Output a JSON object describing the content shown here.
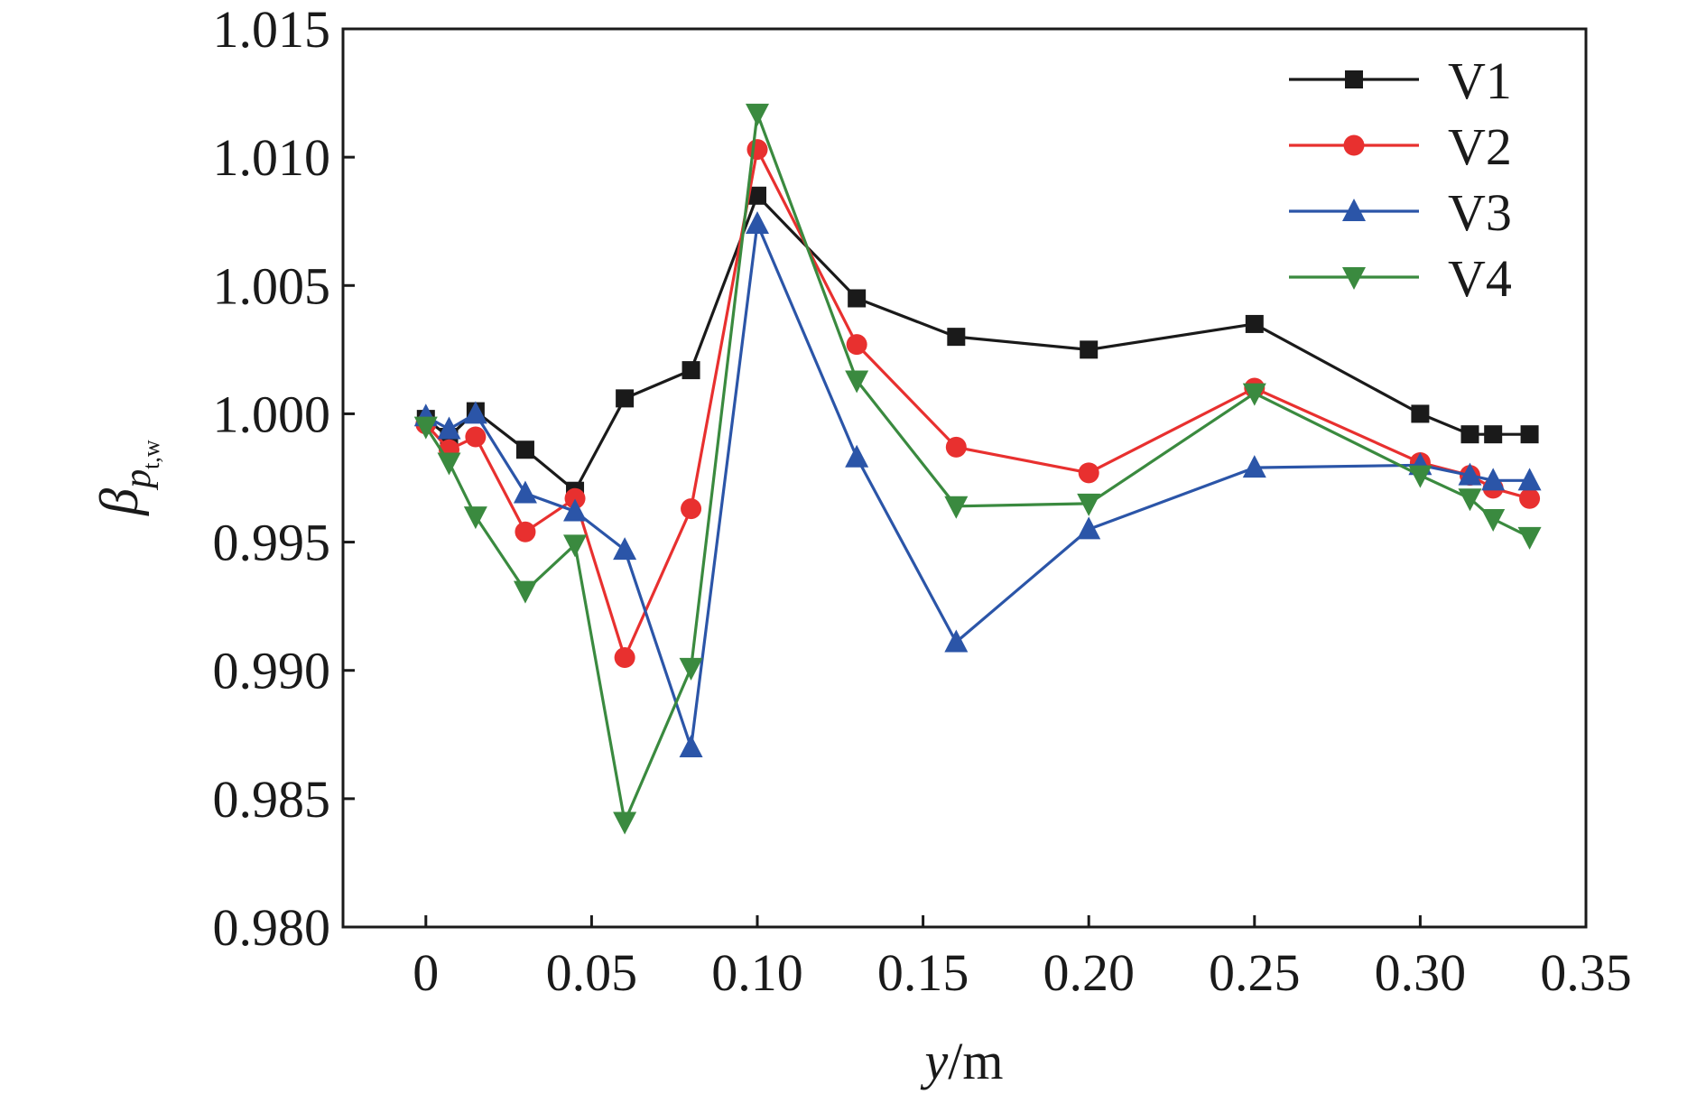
{
  "chart_data": {
    "type": "line",
    "xlabel": {
      "var": "y",
      "unit": "/m"
    },
    "ylabel": {
      "symbol": "β",
      "sub": "p",
      "subsub": "t,w"
    },
    "xlim": [
      -0.025,
      0.35
    ],
    "ylim": [
      0.98,
      1.015
    ],
    "xticks": [
      0,
      0.05,
      0.1,
      0.15,
      0.2,
      0.25,
      0.3,
      0.35
    ],
    "xtick_labels": [
      "0",
      "0.05",
      "0.10",
      "0.15",
      "0.20",
      "0.25",
      "0.30",
      "0.35"
    ],
    "yticks": [
      0.98,
      0.985,
      0.99,
      0.995,
      1.0,
      1.005,
      1.01,
      1.015
    ],
    "ytick_labels": [
      "0.980",
      "0.985",
      "0.990",
      "0.995",
      "1.000",
      "1.005",
      "1.010",
      "1.015"
    ],
    "grid": false,
    "legend_position": "top-right",
    "series": [
      {
        "name": "V1",
        "color": "#1a1a1a",
        "marker": "square",
        "x": [
          0,
          0.007,
          0.015,
          0.03,
          0.045,
          0.06,
          0.08,
          0.1,
          0.13,
          0.16,
          0.2,
          0.25,
          0.3,
          0.315,
          0.322,
          0.333
        ],
        "y": [
          0.9998,
          0.9991,
          1.0001,
          0.9986,
          0.997,
          1.0006,
          1.0017,
          1.0085,
          1.0045,
          1.003,
          1.0025,
          1.0035,
          1.0,
          0.9992,
          0.9992,
          0.9992
        ]
      },
      {
        "name": "V2",
        "color": "#e8302f",
        "marker": "circle",
        "x": [
          0,
          0.007,
          0.015,
          0.03,
          0.045,
          0.06,
          0.08,
          0.1,
          0.13,
          0.16,
          0.2,
          0.25,
          0.3,
          0.315,
          0.322,
          0.333
        ],
        "y": [
          0.9996,
          0.9986,
          0.9991,
          0.9954,
          0.9967,
          0.9905,
          0.9963,
          1.0103,
          1.0027,
          0.9987,
          0.9977,
          1.001,
          0.9981,
          0.9976,
          0.9971,
          0.9967
        ]
      },
      {
        "name": "V3",
        "color": "#2b55a8",
        "marker": "triangle-up",
        "x": [
          0,
          0.007,
          0.015,
          0.03,
          0.045,
          0.06,
          0.08,
          0.1,
          0.13,
          0.16,
          0.2,
          0.25,
          0.3,
          0.315,
          0.322,
          0.333
        ],
        "y": [
          0.9999,
          0.9994,
          1.0,
          0.9969,
          0.9962,
          0.9947,
          0.987,
          1.0074,
          0.9983,
          0.9911,
          0.9955,
          0.9979,
          0.998,
          0.9976,
          0.9974,
          0.9974
        ]
      },
      {
        "name": "V4",
        "color": "#3a8a3f",
        "marker": "triangle-down",
        "x": [
          0,
          0.007,
          0.015,
          0.03,
          0.045,
          0.06,
          0.08,
          0.1,
          0.13,
          0.16,
          0.2,
          0.25,
          0.3,
          0.315,
          0.322,
          0.333
        ],
        "y": [
          0.9995,
          0.9981,
          0.996,
          0.9931,
          0.9949,
          0.9841,
          0.9901,
          1.0117,
          1.0013,
          0.9964,
          0.9965,
          1.0008,
          0.9976,
          0.9967,
          0.9959,
          0.9952
        ]
      }
    ]
  }
}
